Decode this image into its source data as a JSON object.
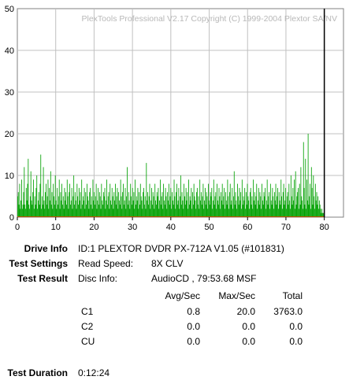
{
  "watermark": "PlexTools Professional V2.17 Copyright (C) 1999-2004 Plextor SA/NV",
  "chart_data": {
    "type": "bar",
    "title": "",
    "xlabel": "",
    "ylabel": "",
    "xlim": [
      0,
      85
    ],
    "ylim": [
      0,
      50
    ],
    "x_ticks": [
      0,
      10,
      20,
      30,
      40,
      50,
      60,
      70,
      80
    ],
    "y_ticks": [
      0,
      10,
      20,
      30,
      40,
      50
    ],
    "grid": true,
    "marker_x": 80,
    "colors": {
      "c1": "#00a000",
      "c2": "#c05000",
      "marker": "#000000",
      "grid": "#c0c0c0"
    },
    "series": [
      {
        "values": [
          5,
          6,
          3,
          8,
          2,
          4,
          9,
          2,
          3,
          6,
          12,
          3,
          2,
          7,
          4,
          8,
          14,
          3,
          2,
          5,
          11,
          4,
          3,
          6,
          9,
          2,
          5,
          3,
          7,
          10,
          2,
          4,
          6,
          3,
          8,
          15,
          2,
          5,
          3,
          12,
          4,
          2,
          6,
          8,
          3,
          5,
          9,
          2,
          7,
          4,
          11,
          3,
          6,
          2,
          8,
          5,
          3,
          10,
          4,
          2,
          7,
          3,
          5,
          9,
          2,
          6,
          4,
          8,
          3,
          5,
          2,
          7,
          4,
          6,
          3,
          9,
          5,
          2,
          6,
          8,
          3,
          4,
          7,
          2,
          5,
          10,
          3,
          6,
          4,
          2,
          8,
          5,
          3,
          7,
          4,
          6,
          2,
          9,
          3,
          5,
          4,
          7,
          2,
          6,
          3,
          8,
          5,
          4,
          2,
          6,
          7,
          3,
          5,
          2,
          9,
          4,
          6,
          3,
          5,
          8,
          2,
          4,
          7,
          3,
          6,
          5,
          2,
          8,
          4,
          3,
          6,
          5,
          7,
          2,
          4,
          9,
          3,
          5,
          6,
          2,
          8,
          4,
          3,
          7,
          5,
          2,
          6,
          4,
          8,
          3,
          5,
          7,
          2,
          6,
          4,
          3,
          9,
          5,
          2,
          6,
          8,
          3,
          4,
          7,
          2,
          5,
          12,
          3,
          6,
          4,
          2,
          8,
          5,
          3,
          7,
          4,
          6,
          2,
          9,
          3,
          5,
          4,
          7,
          2,
          6,
          3,
          8,
          5,
          4,
          2,
          6,
          7,
          3,
          5,
          2,
          13,
          4,
          6,
          3,
          5,
          8,
          2,
          4,
          7,
          3,
          6,
          5,
          2,
          8,
          4,
          3,
          6,
          5,
          7,
          2,
          4,
          9,
          3,
          5,
          6,
          2,
          8,
          4,
          3,
          7,
          5,
          2,
          6,
          4,
          8,
          3,
          5,
          7,
          2,
          6,
          4,
          3,
          9,
          5,
          2,
          6,
          8,
          3,
          4,
          7,
          2,
          5,
          10,
          3,
          6,
          4,
          2,
          8,
          5,
          3,
          7,
          4,
          6,
          2,
          9,
          3,
          5,
          4,
          7,
          2,
          6,
          3,
          8,
          5,
          4,
          2,
          6,
          7,
          3,
          5,
          2,
          9,
          4,
          6,
          3,
          5,
          8,
          2,
          4,
          7,
          3,
          6,
          5,
          2,
          8,
          4,
          3,
          6,
          5,
          7,
          2,
          4,
          9,
          3,
          5,
          6,
          2,
          8,
          4,
          3,
          7,
          5,
          2,
          6,
          4,
          8,
          3,
          5,
          7,
          2,
          6,
          4,
          3,
          9,
          5,
          2,
          6,
          8,
          3,
          4,
          7,
          2,
          5,
          11,
          3,
          6,
          4,
          2,
          8,
          5,
          3,
          7,
          4,
          6,
          2,
          9,
          3,
          5,
          4,
          7,
          2,
          6,
          3,
          8,
          5,
          4,
          2,
          6,
          7,
          3,
          5,
          2,
          9,
          4,
          6,
          3,
          5,
          8,
          2,
          4,
          7,
          3,
          6,
          5,
          2,
          8,
          4,
          3,
          6,
          5,
          7,
          2,
          4,
          9,
          3,
          5,
          6,
          2,
          8,
          4,
          3,
          7,
          5,
          2,
          6,
          4,
          8,
          3,
          5,
          7,
          2,
          6,
          4,
          3,
          9,
          5,
          2,
          6,
          8,
          3,
          4,
          7,
          2,
          5,
          6,
          3,
          8,
          4,
          2,
          10,
          5,
          3,
          7,
          4,
          9,
          2,
          11,
          3,
          5,
          6,
          7,
          2,
          8,
          3,
          12,
          5,
          4,
          2,
          18,
          7,
          3,
          14,
          2,
          9,
          4,
          20,
          3,
          5,
          8,
          2,
          12,
          7,
          3,
          10,
          5,
          2,
          8,
          4,
          6,
          3,
          5,
          2,
          4,
          3,
          2,
          1,
          2,
          1,
          1,
          0
        ]
      }
    ]
  },
  "info": {
    "drive_info_label": "Drive Info",
    "drive_info_value": "ID:1 PLEXTOR DVDR PX-712A V1.05 (#101831)",
    "test_settings_label": "Test Settings",
    "read_speed_label": "Read Speed:",
    "read_speed_value": "8X CLV",
    "test_result_label": "Test Result",
    "disc_info_label": "Disc Info:",
    "disc_info_value": "AudioCD , 79:53.68 MSF",
    "columns": {
      "avg": "Avg/Sec",
      "max": "Max/Sec",
      "total": "Total"
    },
    "rows": [
      {
        "name": "C1",
        "avg": "0.8",
        "max": "20.0",
        "total": "3763.0"
      },
      {
        "name": "C2",
        "avg": "0.0",
        "max": "0.0",
        "total": "0.0"
      },
      {
        "name": "CU",
        "avg": "0.0",
        "max": "0.0",
        "total": "0.0"
      }
    ],
    "duration_label": "Test Duration",
    "duration_value": "0:12:24"
  }
}
